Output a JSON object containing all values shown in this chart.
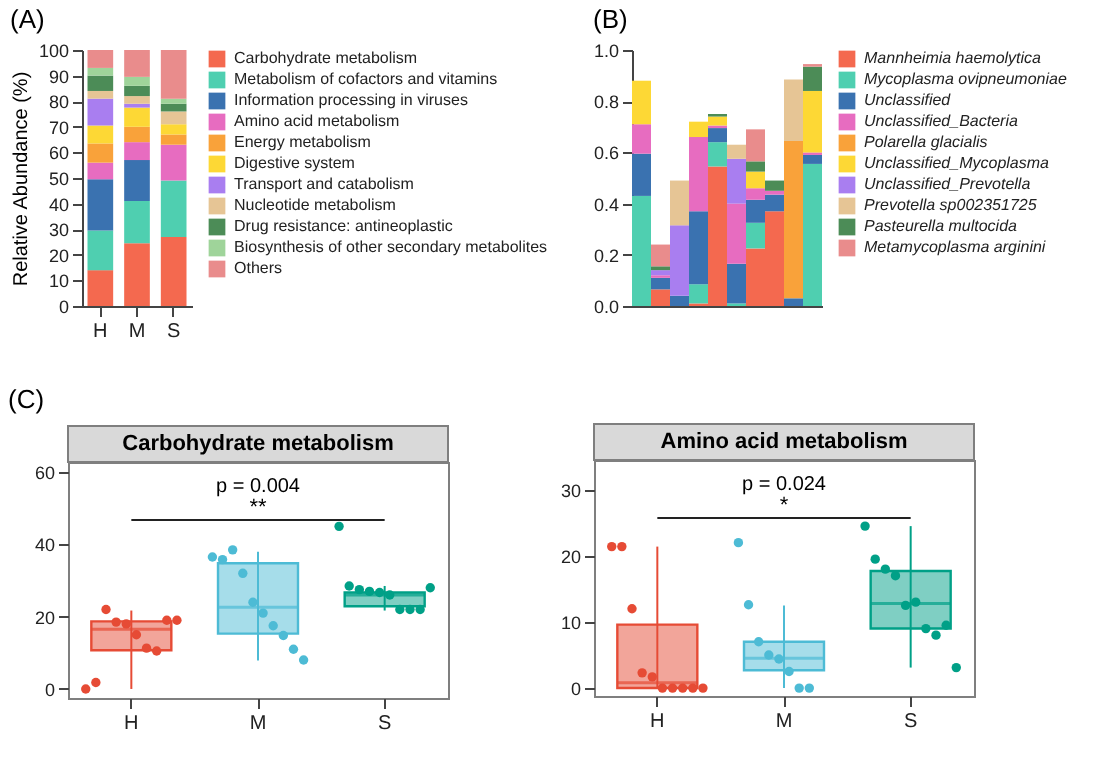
{
  "chart_data": [
    {
      "type": "bar",
      "stacked": true,
      "title": "(A)",
      "ylabel": "Relative Abundance (%)",
      "categories": [
        "H",
        "M",
        "S"
      ],
      "legend": "right",
      "ylim": [
        0,
        100
      ],
      "yticks": [
        0,
        10,
        20,
        30,
        40,
        50,
        60,
        70,
        80,
        90,
        100
      ],
      "series": [
        {
          "name": "Carbohydrate metabolism",
          "color": "#f4694f",
          "values": [
            14,
            24.5,
            27
          ]
        },
        {
          "name": "Metabolism of cofactors and vitamins",
          "color": "#4fcfb0",
          "values": [
            15.5,
            16.5,
            22
          ]
        },
        {
          "name": "Information processing in viruses",
          "color": "#3a72b0",
          "values": [
            20,
            16,
            null
          ]
        },
        {
          "name": "Amino acid metabolism",
          "color": "#e76cc0",
          "values": [
            6.5,
            7,
            14
          ]
        },
        {
          "name": "Energy metabolism",
          "color": "#f9a23a",
          "values": [
            7.5,
            6,
            4
          ]
        },
        {
          "name": "Digestive system",
          "color": "#fdd835",
          "values": [
            7,
            7.5,
            4
          ]
        },
        {
          "name": "Transport and catabolism",
          "color": "#a97ef0",
          "values": [
            10.5,
            1.5,
            null
          ]
        },
        {
          "name": "Nucleotide metabolism",
          "color": "#e6c595",
          "values": [
            3,
            3,
            5
          ]
        },
        {
          "name": "Drug resistance: antineoplastic",
          "color": "#4c8c57",
          "values": [
            6,
            4,
            3
          ]
        },
        {
          "name": "Biosynthesis of other secondary metabolites",
          "color": "#9fd49a",
          "values": [
            3,
            3.5,
            2
          ]
        },
        {
          "name": "Others",
          "color": "#e98c8c",
          "values": [
            7,
            10.5,
            19
          ]
        }
      ]
    },
    {
      "type": "bar",
      "stacked": true,
      "title": "(B)",
      "categories": [
        null,
        null,
        null,
        null,
        null,
        null,
        null,
        null,
        null,
        null
      ],
      "legend": "right",
      "ylim": [
        0,
        1
      ],
      "yticks": [
        {
          "value": 0,
          "label": "0.0"
        },
        {
          "value": 0.2,
          "label": "0.2"
        },
        {
          "value": 0.4,
          "label": "0.4"
        },
        {
          "value": 0.6,
          "label": "0.6"
        },
        {
          "value": 0.8,
          "label": "0.8"
        },
        {
          "value": 1,
          "label": "1.0"
        }
      ],
      "series": [
        {
          "name": "Mannheimia haemolytica",
          "color": "#f4694f",
          "values": [
            null,
            0.065,
            null,
            0.01,
            0.545,
            null,
            0.225,
            0.37,
            null,
            null
          ]
        },
        {
          "name": "Mycoplasma ovipneumoniae",
          "color": "#4fcfb0",
          "values": [
            0.43,
            null,
            null,
            0.075,
            0.095,
            0.01,
            0.1,
            null,
            null,
            0.555
          ]
        },
        {
          "name": "Unclassified",
          "color": "#3a72b0",
          "values": [
            0.165,
            0.045,
            0.04,
            0.285,
            0.055,
            0.155,
            0.09,
            0.065,
            0.03,
            0.035
          ]
        },
        {
          "name": "Unclassified_Bacteria",
          "color": "#e76cc0",
          "values": [
            0.115,
            0.01,
            null,
            0.29,
            0.01,
            0.235,
            0.045,
            0.015,
            null,
            0.01
          ]
        },
        {
          "name": "Polarella glacialis",
          "color": "#f9a23a",
          "values": [
            null,
            null,
            null,
            null,
            null,
            null,
            null,
            null,
            0.615,
            null
          ]
        },
        {
          "name": "Unclassified_Mycoplasma",
          "color": "#fdd835",
          "values": [
            0.17,
            null,
            null,
            0.06,
            0.035,
            null,
            0.065,
            null,
            null,
            0.24
          ]
        },
        {
          "name": "Unclassified_Prevotella",
          "color": "#a97ef0",
          "values": [
            null,
            0.02,
            0.275,
            null,
            null,
            0.175,
            null,
            null,
            null,
            null
          ]
        },
        {
          "name": "Prevotella sp002351725",
          "color": "#e6c595",
          "values": [
            null,
            null,
            0.175,
            null,
            null,
            0.055,
            null,
            null,
            0.24,
            null
          ]
        },
        {
          "name": "Pasteurella multocida",
          "color": "#4c8c57",
          "values": [
            null,
            0.015,
            null,
            null,
            0.01,
            null,
            0.04,
            0.04,
            null,
            0.095
          ]
        },
        {
          "name": "Metamycoplasma arginini",
          "color": "#e98c8c",
          "values": [
            null,
            0.085,
            null,
            null,
            null,
            null,
            0.125,
            null,
            null,
            0.01
          ]
        }
      ]
    },
    {
      "type": "box",
      "title": "Carbohydrate metabolism",
      "annotations": [
        "(C)",
        "p = 0.004",
        "**"
      ],
      "categories": [
        "H",
        "M",
        "S"
      ],
      "colors": [
        "#e64b35",
        "#4dbbd5",
        "#00a087"
      ],
      "ylim": [
        -2.5,
        62.8
      ],
      "yticks": [
        0,
        20,
        40,
        60
      ],
      "boxes": [
        {
          "low": 0,
          "q1": 10.7,
          "median": 16.5,
          "q3": 18.7,
          "high": 21.7
        },
        {
          "low": 7.9,
          "q1": 15.3,
          "median": 22.6,
          "q3": 34.8,
          "high": 38
        },
        {
          "low": 21.7,
          "q1": 22.9,
          "median": 26,
          "q3": 26.7,
          "high": 28.5
        }
      ],
      "series": [
        {
          "type": "scatter",
          "x": [
            "H",
            "H",
            "H",
            "H",
            "H",
            "H",
            "H",
            "H",
            "H",
            "H",
            "M",
            "M",
            "M",
            "M",
            "M",
            "M",
            "M",
            "M",
            "M",
            "M",
            "S",
            "S",
            "S",
            "S",
            "S",
            "S",
            "S",
            "S",
            "S",
            "S"
          ],
          "values": [
            0,
            1.8,
            22,
            18.5,
            18,
            15,
            11.3,
            10.5,
            19,
            19,
            36.5,
            35.8,
            38.5,
            32,
            24,
            21,
            17.5,
            14.8,
            11,
            8,
            45,
            28.5,
            27.5,
            27,
            26.7,
            26,
            22,
            22,
            22,
            28
          ],
          "colors": [
            "#e64b35",
            "#e64b35",
            "#e64b35",
            "#e64b35",
            "#e64b35",
            "#e64b35",
            "#e64b35",
            "#e64b35",
            "#e64b35",
            "#e64b35",
            "#4dbbd5",
            "#4dbbd5",
            "#4dbbd5",
            "#4dbbd5",
            "#4dbbd5",
            "#4dbbd5",
            "#4dbbd5",
            "#4dbbd5",
            "#4dbbd5",
            "#4dbbd5",
            "#00a087",
            "#00a087",
            "#00a087",
            "#00a087",
            "#00a087",
            "#00a087",
            "#00a087",
            "#00a087",
            "#00a087",
            "#00a087"
          ]
        }
      ]
    },
    {
      "type": "box",
      "title": "Amino acid metabolism",
      "annotations": [
        "p = 0.024",
        "*"
      ],
      "categories": [
        "H",
        "M",
        "S"
      ],
      "colors": [
        "#e64b35",
        "#4dbbd5",
        "#00a087"
      ],
      "ylim": [
        -1.2,
        34.5
      ],
      "yticks": [
        0,
        10,
        20,
        30
      ],
      "boxes": [
        {
          "low": 0,
          "q1": 0,
          "median": 0.8,
          "q3": 9.6,
          "high": 21.4
        },
        {
          "low": 0,
          "q1": 2.7,
          "median": 4.5,
          "q3": 7,
          "high": 12.5
        },
        {
          "low": 3.1,
          "q1": 9,
          "median": 12.8,
          "q3": 17.7,
          "high": 24.5
        }
      ],
      "series": [
        {
          "type": "scatter",
          "x": [
            "H",
            "H",
            "H",
            "H",
            "H",
            "H",
            "H",
            "H",
            "H",
            "H",
            "M",
            "M",
            "M",
            "M",
            "M",
            "M",
            "M",
            "M",
            "S",
            "S",
            "S",
            "S",
            "S",
            "S",
            "S",
            "S",
            "S",
            "S"
          ],
          "values": [
            21.4,
            21.4,
            12,
            2.3,
            1.7,
            0,
            0,
            0,
            0,
            0,
            22,
            12.6,
            7,
            5,
            4.4,
            2.5,
            0,
            0,
            24.5,
            19.5,
            18,
            17,
            12.5,
            13,
            9,
            8,
            9.5,
            3.1
          ],
          "colors": [
            "#e64b35",
            "#e64b35",
            "#e64b35",
            "#e64b35",
            "#e64b35",
            "#e64b35",
            "#e64b35",
            "#e64b35",
            "#e64b35",
            "#e64b35",
            "#4dbbd5",
            "#4dbbd5",
            "#4dbbd5",
            "#4dbbd5",
            "#4dbbd5",
            "#4dbbd5",
            "#4dbbd5",
            "#4dbbd5",
            "#00a087",
            "#00a087",
            "#00a087",
            "#00a087",
            "#00a087",
            "#00a087",
            "#00a087",
            "#00a087",
            "#00a087",
            "#00a087"
          ]
        }
      ]
    }
  ]
}
